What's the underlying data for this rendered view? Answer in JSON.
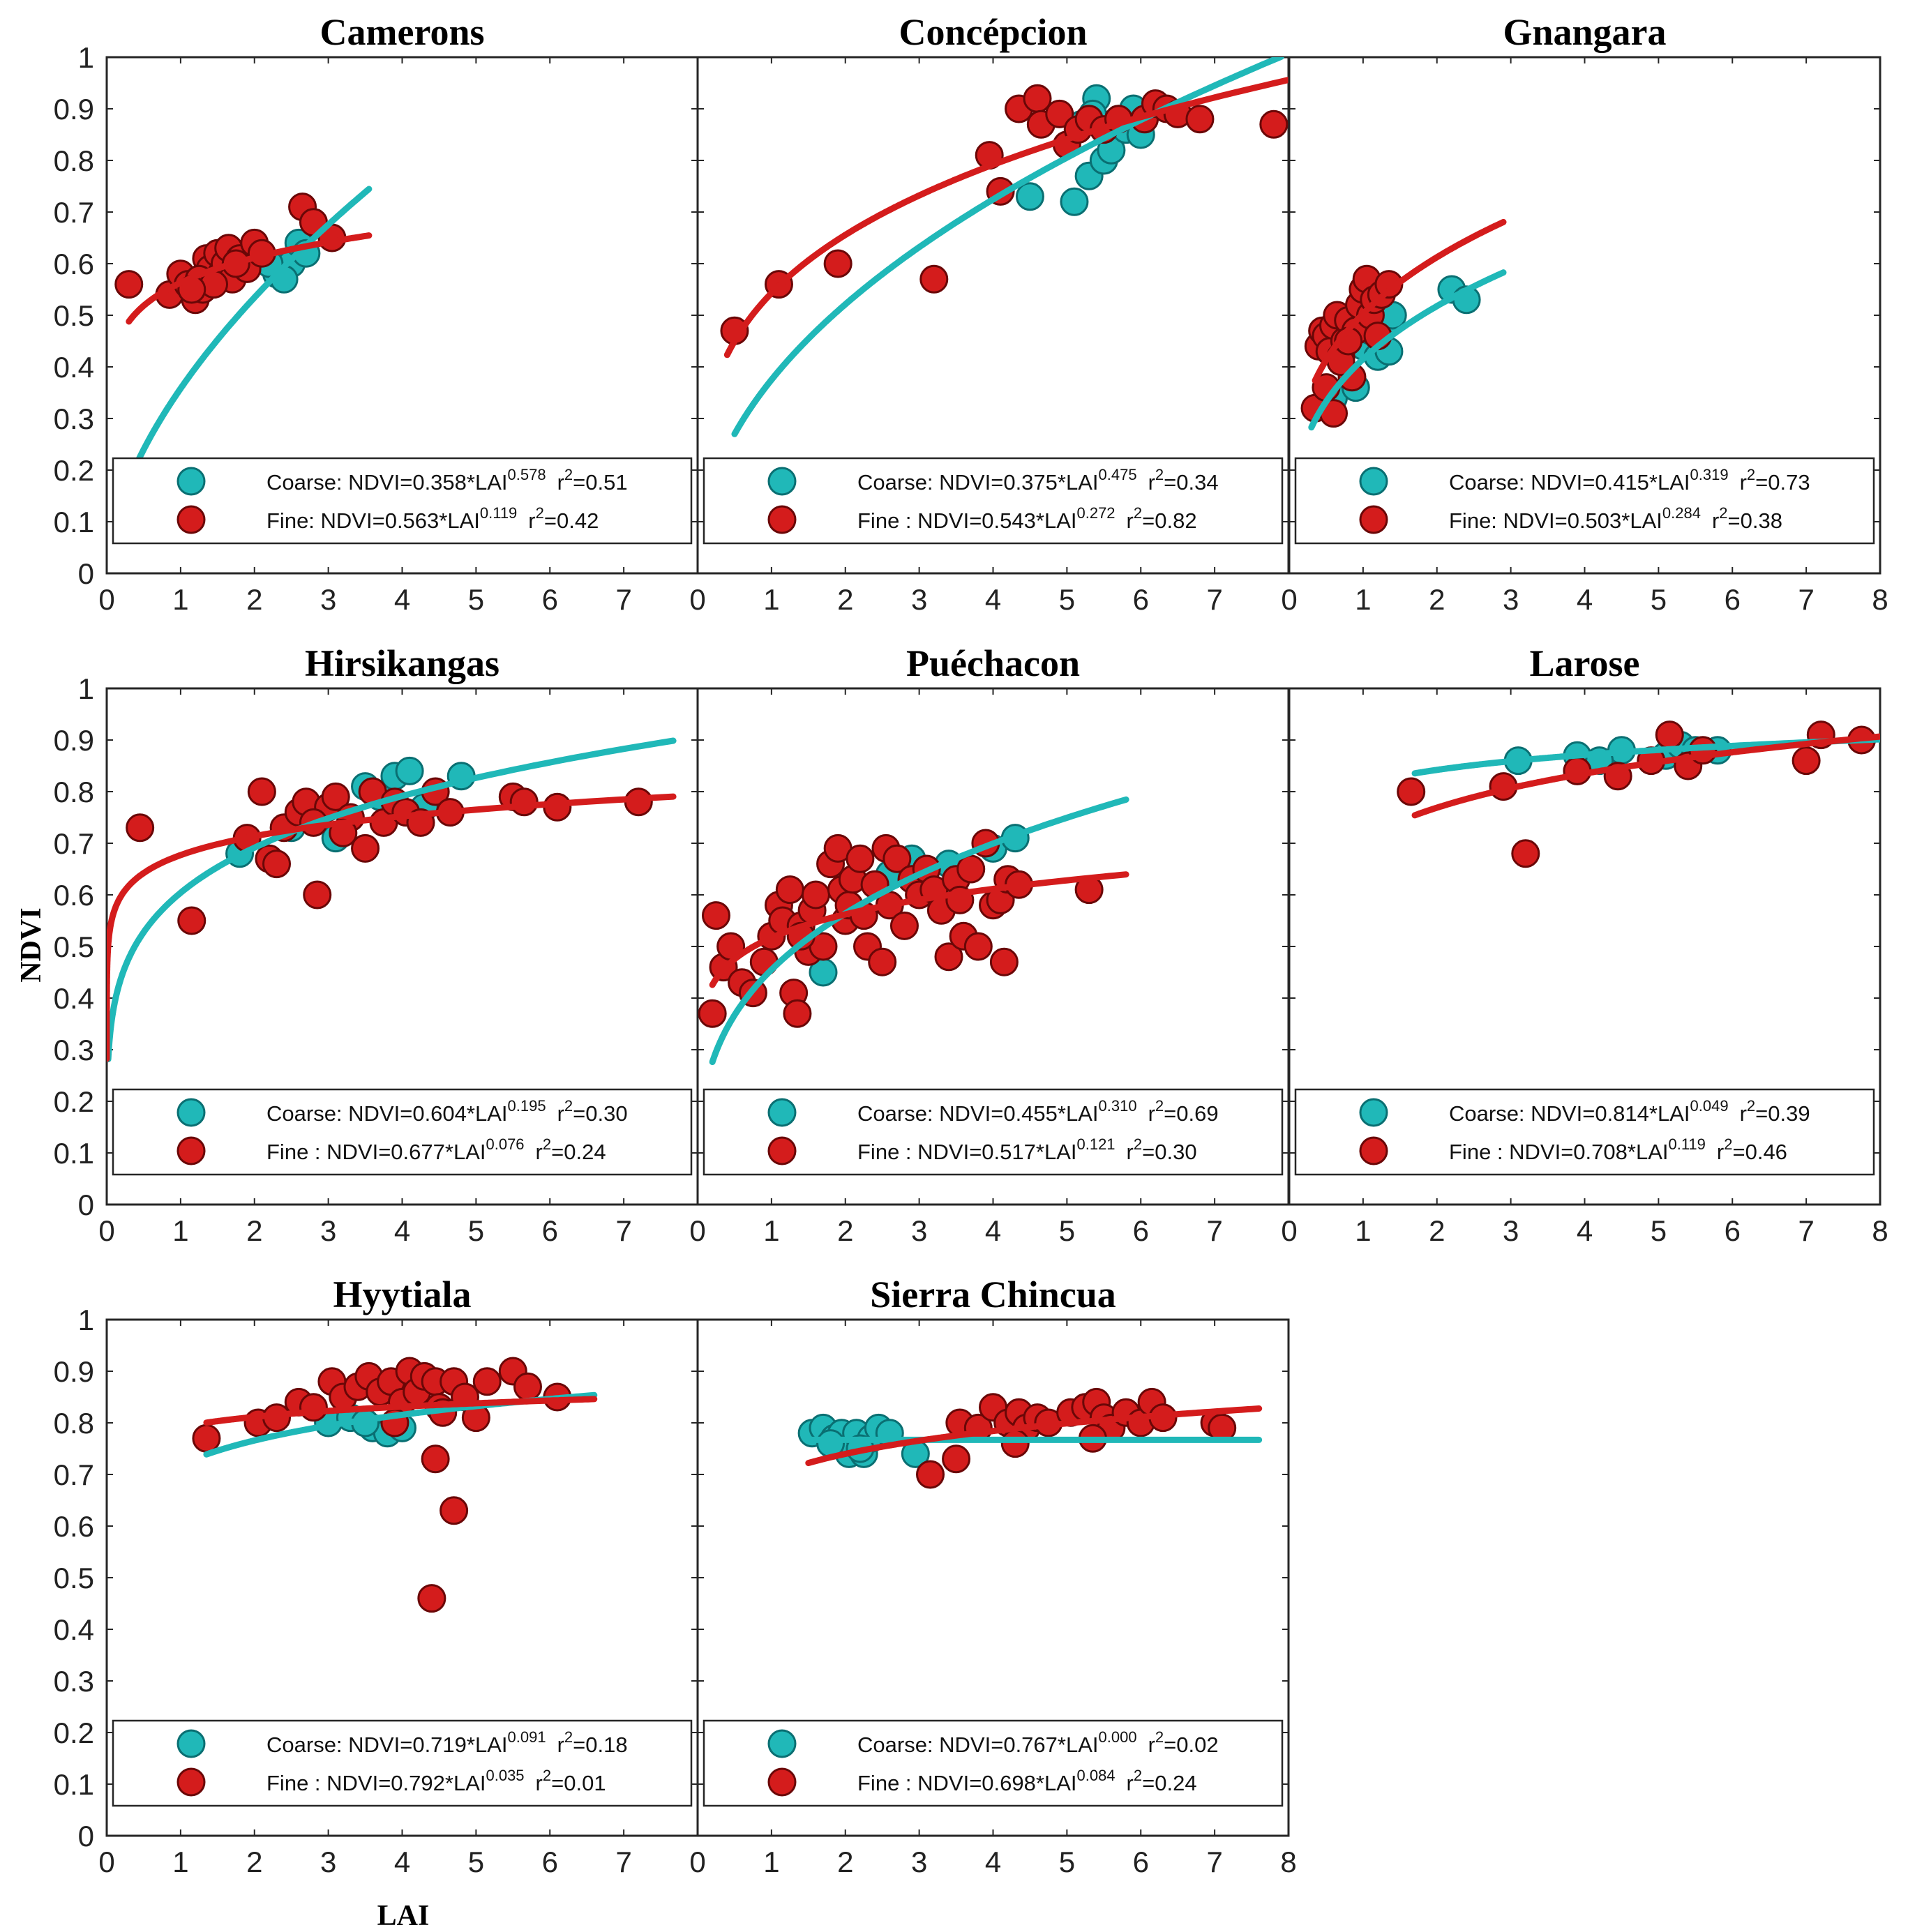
{
  "figure": {
    "ylabel": "NDVI",
    "xlabel": "LAI",
    "colors": {
      "coarse": "#20b8b8",
      "coarse_edge": "#0a6f72",
      "fine": "#d41c1c",
      "fine_edge": "#6a0707"
    }
  },
  "chart_data": [
    {
      "type": "scatter",
      "title": "Camerons",
      "xlim": [
        0,
        8
      ],
      "ylim": [
        0,
        1
      ],
      "x_ticks": [
        "0",
        "1",
        "2",
        "3",
        "4",
        "5",
        "6",
        "7"
      ],
      "y_ticks": [
        "0",
        "0.1",
        "0.2",
        "0.3",
        "0.4",
        "0.5",
        "0.6",
        "0.7",
        "0.8",
        "0.9",
        "1"
      ],
      "legend": {
        "coarse": {
          "label": "Coarse: NDVI=0.358*LAI",
          "exp": "0.578",
          "r2": "=0.51"
        },
        "fine": {
          "label": "Fine: NDVI=0.563*LAI",
          "exp": "0.119",
          "r2": "=0.42"
        }
      },
      "fits": {
        "coarse": {
          "a": 0.358,
          "b": 0.578,
          "xrange": [
            0.4,
            3.55
          ]
        },
        "fine": {
          "a": 0.563,
          "b": 0.119,
          "xrange": [
            0.3,
            3.55
          ]
        }
      },
      "series": [
        {
          "name": "Coarse",
          "x": [
            2.3,
            2.5,
            2.6,
            2.7,
            2.4,
            2.2
          ],
          "y": [
            0.58,
            0.6,
            0.64,
            0.62,
            0.57,
            0.6
          ]
        },
        {
          "name": "Fine",
          "x": [
            0.3,
            0.85,
            1.0,
            1.1,
            1.2,
            1.3,
            1.35,
            1.4,
            1.5,
            1.55,
            1.6,
            1.65,
            1.7,
            1.8,
            1.9,
            2.0,
            2.1,
            1.25,
            1.45,
            1.75,
            2.65,
            2.8,
            3.05,
            1.15
          ],
          "y": [
            0.56,
            0.54,
            0.58,
            0.56,
            0.53,
            0.55,
            0.61,
            0.59,
            0.62,
            0.58,
            0.6,
            0.63,
            0.57,
            0.61,
            0.59,
            0.64,
            0.62,
            0.57,
            0.56,
            0.6,
            0.71,
            0.68,
            0.65,
            0.55
          ]
        }
      ]
    },
    {
      "type": "scatter",
      "title": "Concépcion",
      "xlim": [
        0,
        8
      ],
      "ylim": [
        0,
        1
      ],
      "x_ticks": [
        "0",
        "1",
        "2",
        "3",
        "4",
        "5",
        "6",
        "7"
      ],
      "y_ticks": [],
      "legend": {
        "coarse": {
          "label": "Coarse: NDVI=0.375*LAI",
          "exp": "0.475",
          "r2": "=0.34"
        },
        "fine": {
          "label": "Fine  : NDVI=0.543*LAI",
          "exp": "0.272",
          "r2": "=0.82"
        }
      },
      "fits": {
        "coarse": {
          "a": 0.375,
          "b": 0.475,
          "xrange": [
            0.5,
            7.9
          ]
        },
        "fine": {
          "a": 0.543,
          "b": 0.272,
          "xrange": [
            0.4,
            7.99
          ]
        }
      },
      "series": [
        {
          "name": "Coarse",
          "x": [
            4.5,
            5.1,
            5.3,
            5.4,
            5.5,
            5.6,
            5.7,
            5.8,
            5.9,
            6.0,
            5.2,
            5.35
          ],
          "y": [
            0.73,
            0.72,
            0.77,
            0.92,
            0.8,
            0.82,
            0.88,
            0.86,
            0.9,
            0.85,
            0.87,
            0.89
          ]
        },
        {
          "name": "Fine",
          "x": [
            0.5,
            1.1,
            1.9,
            3.2,
            3.95,
            4.1,
            4.35,
            4.6,
            4.65,
            4.9,
            5.0,
            5.15,
            5.3,
            5.5,
            5.7,
            6.05,
            6.2,
            6.35,
            6.5,
            6.8,
            7.8
          ],
          "y": [
            0.47,
            0.56,
            0.6,
            0.57,
            0.81,
            0.74,
            0.9,
            0.92,
            0.87,
            0.89,
            0.83,
            0.86,
            0.88,
            0.86,
            0.88,
            0.88,
            0.91,
            0.9,
            0.89,
            0.88,
            0.87
          ]
        }
      ]
    },
    {
      "type": "scatter",
      "title": "Gnangara",
      "xlim": [
        0,
        8
      ],
      "ylim": [
        0,
        1
      ],
      "x_ticks": [
        "0",
        "1",
        "2",
        "3",
        "4",
        "5",
        "6",
        "7",
        "8"
      ],
      "y_ticks": [],
      "legend": {
        "coarse": {
          "label": "Coarse: NDVI=0.415*LAI",
          "exp": "0.319",
          "r2": "=0.73"
        },
        "fine": {
          "label": "Fine: NDVI=0.503*LAI",
          "exp": "0.284",
          "r2": "=0.38"
        }
      },
      "fits": {
        "coarse": {
          "a": 0.415,
          "b": 0.319,
          "xrange": [
            0.3,
            2.9
          ]
        },
        "fine": {
          "a": 0.503,
          "b": 0.284,
          "xrange": [
            0.35,
            2.9
          ]
        }
      },
      "series": [
        {
          "name": "Coarse",
          "x": [
            0.6,
            0.9,
            1.0,
            1.2,
            1.3,
            1.4,
            1.1,
            2.2,
            2.4,
            1.35
          ],
          "y": [
            0.34,
            0.36,
            0.44,
            0.42,
            0.48,
            0.5,
            0.47,
            0.55,
            0.53,
            0.43
          ]
        },
        {
          "name": "Fine",
          "x": [
            0.35,
            0.4,
            0.45,
            0.5,
            0.55,
            0.6,
            0.65,
            0.7,
            0.75,
            0.8,
            0.85,
            0.9,
            0.95,
            1.0,
            1.05,
            1.1,
            1.15,
            1.2,
            1.25,
            1.35,
            0.5,
            0.6,
            0.7,
            0.8
          ],
          "y": [
            0.32,
            0.44,
            0.47,
            0.46,
            0.43,
            0.48,
            0.5,
            0.42,
            0.45,
            0.49,
            0.38,
            0.47,
            0.52,
            0.55,
            0.57,
            0.5,
            0.53,
            0.46,
            0.54,
            0.56,
            0.36,
            0.31,
            0.41,
            0.45
          ]
        }
      ]
    },
    {
      "type": "scatter",
      "title": "Hirsikangas",
      "xlim": [
        0,
        8
      ],
      "ylim": [
        0,
        1
      ],
      "x_ticks": [
        "0",
        "1",
        "2",
        "3",
        "4",
        "5",
        "6",
        "7"
      ],
      "y_ticks": [
        "0",
        "0.1",
        "0.2",
        "0.3",
        "0.4",
        "0.5",
        "0.6",
        "0.7",
        "0.8",
        "0.9",
        "1"
      ],
      "legend": {
        "coarse": {
          "label": "Coarse: NDVI=0.604*LAI",
          "exp": "0.195",
          "r2": "=0.30"
        },
        "fine": {
          "label": "Fine  : NDVI=0.677*LAI",
          "exp": "0.076",
          "r2": "=0.24"
        }
      },
      "fits": {
        "coarse": {
          "a": 0.604,
          "b": 0.195,
          "xrange": [
            0.02,
            7.67
          ]
        },
        "fine": {
          "a": 0.677,
          "b": 0.076,
          "xrange": [
            1e-05,
            7.67
          ]
        }
      },
      "series": [
        {
          "name": "Coarse",
          "x": [
            1.8,
            2.5,
            3.1,
            3.5,
            3.7,
            3.9,
            4.1,
            4.8,
            4.3,
            2.9
          ],
          "y": [
            0.68,
            0.73,
            0.71,
            0.81,
            0.79,
            0.83,
            0.84,
            0.83,
            0.77,
            0.76
          ]
        },
        {
          "name": "Fine",
          "x": [
            0.45,
            1.15,
            1.9,
            2.1,
            2.2,
            2.3,
            2.4,
            2.6,
            2.7,
            2.85,
            3.0,
            3.1,
            3.3,
            3.5,
            3.6,
            3.75,
            3.9,
            4.05,
            4.25,
            4.45,
            4.65,
            5.5,
            5.65,
            6.1,
            7.2,
            2.8,
            3.2
          ],
          "y": [
            0.73,
            0.55,
            0.71,
            0.8,
            0.67,
            0.66,
            0.73,
            0.76,
            0.78,
            0.6,
            0.77,
            0.79,
            0.75,
            0.69,
            0.8,
            0.74,
            0.78,
            0.76,
            0.74,
            0.8,
            0.76,
            0.79,
            0.78,
            0.77,
            0.78,
            0.74,
            0.72
          ]
        }
      ]
    },
    {
      "type": "scatter",
      "title": "Puéchacon",
      "xlim": [
        0,
        8
      ],
      "ylim": [
        0,
        1
      ],
      "x_ticks": [
        "0",
        "1",
        "2",
        "3",
        "4",
        "5",
        "6",
        "7"
      ],
      "y_ticks": [],
      "legend": {
        "coarse": {
          "label": "Coarse: NDVI=0.455*LAI",
          "exp": "0.310",
          "r2": "=0.69"
        },
        "fine": {
          "label": "Fine  : NDVI=0.517*LAI",
          "exp": "0.121",
          "r2": "=0.30"
        }
      },
      "fits": {
        "coarse": {
          "a": 0.455,
          "b": 0.31,
          "xrange": [
            0.2,
            5.8
          ]
        },
        "fine": {
          "a": 0.517,
          "b": 0.121,
          "xrange": [
            0.2,
            5.8
          ]
        }
      },
      "series": [
        {
          "name": "Coarse",
          "x": [
            1.7,
            2.9,
            3.4,
            4.0,
            4.3,
            3.1,
            2.6
          ],
          "y": [
            0.45,
            0.67,
            0.66,
            0.69,
            0.71,
            0.62,
            0.64
          ]
        },
        {
          "name": "Fine",
          "x": [
            0.2,
            0.25,
            0.35,
            0.45,
            0.6,
            0.75,
            0.9,
            1.0,
            1.1,
            1.15,
            1.25,
            1.3,
            1.35,
            1.4,
            1.5,
            1.55,
            1.6,
            1.7,
            1.8,
            1.9,
            1.95,
            2.0,
            2.05,
            2.1,
            2.2,
            2.3,
            2.4,
            2.5,
            2.55,
            2.6,
            2.7,
            2.8,
            2.9,
            3.0,
            3.1,
            3.2,
            3.3,
            3.4,
            3.5,
            3.6,
            3.7,
            3.8,
            3.9,
            4.0,
            4.1,
            4.15,
            4.2,
            4.35,
            5.3,
            1.4,
            2.25,
            3.55
          ],
          "y": [
            0.37,
            0.56,
            0.46,
            0.5,
            0.43,
            0.41,
            0.47,
            0.52,
            0.58,
            0.55,
            0.61,
            0.41,
            0.37,
            0.54,
            0.49,
            0.57,
            0.6,
            0.5,
            0.66,
            0.69,
            0.61,
            0.55,
            0.58,
            0.63,
            0.67,
            0.5,
            0.62,
            0.47,
            0.69,
            0.58,
            0.67,
            0.54,
            0.63,
            0.6,
            0.65,
            0.61,
            0.57,
            0.48,
            0.63,
            0.52,
            0.65,
            0.5,
            0.7,
            0.58,
            0.59,
            0.47,
            0.63,
            0.62,
            0.61,
            0.52,
            0.56,
            0.59
          ]
        }
      ]
    },
    {
      "type": "scatter",
      "title": "Larose",
      "xlim": [
        0,
        8
      ],
      "ylim": [
        0,
        1
      ],
      "x_ticks": [
        "0",
        "1",
        "2",
        "3",
        "4",
        "5",
        "6",
        "7",
        "8"
      ],
      "y_ticks": [],
      "legend": {
        "coarse": {
          "label": "Coarse: NDVI=0.814*LAI",
          "exp": "0.049",
          "r2": "=0.39"
        },
        "fine": {
          "label": "Fine  : NDVI=0.708*LAI",
          "exp": "0.119",
          "r2": "=0.46"
        }
      },
      "fits": {
        "coarse": {
          "a": 0.814,
          "b": 0.049,
          "xrange": [
            1.7,
            7.99
          ]
        },
        "fine": {
          "a": 0.708,
          "b": 0.119,
          "xrange": [
            1.7,
            7.99
          ]
        }
      },
      "series": [
        {
          "name": "Coarse",
          "x": [
            3.1,
            3.9,
            4.5,
            5.1,
            5.3,
            5.5,
            5.8,
            4.2
          ],
          "y": [
            0.86,
            0.87,
            0.88,
            0.87,
            0.89,
            0.88,
            0.88,
            0.86
          ]
        },
        {
          "name": "Fine",
          "x": [
            1.65,
            2.9,
            3.2,
            3.9,
            4.45,
            4.9,
            5.15,
            5.4,
            5.6,
            7.0,
            7.2,
            7.75
          ],
          "y": [
            0.8,
            0.81,
            0.68,
            0.84,
            0.83,
            0.86,
            0.91,
            0.85,
            0.88,
            0.86,
            0.91,
            0.9
          ]
        }
      ]
    },
    {
      "type": "scatter",
      "title": "Hyytiala",
      "xlim": [
        0,
        8
      ],
      "ylim": [
        0,
        1
      ],
      "x_ticks": [
        "0",
        "1",
        "2",
        "3",
        "4",
        "5",
        "6",
        "7"
      ],
      "y_ticks": [
        "0",
        "0.1",
        "0.2",
        "0.3",
        "0.4",
        "0.5",
        "0.6",
        "0.7",
        "0.8",
        "0.9",
        "1"
      ],
      "legend": {
        "coarse": {
          "label": "Coarse: NDVI=0.719*LAI",
          "exp": "0.091",
          "r2": "=0.18"
        },
        "fine": {
          "label": "Fine  : NDVI=0.792*LAI",
          "exp": "0.035",
          "r2": "=0.01"
        }
      },
      "fits": {
        "coarse": {
          "a": 0.719,
          "b": 0.091,
          "xrange": [
            1.35,
            6.6
          ]
        },
        "fine": {
          "a": 0.792,
          "b": 0.035,
          "xrange": [
            1.35,
            6.6
          ]
        }
      },
      "series": [
        {
          "name": "Coarse",
          "x": [
            3.0,
            3.3,
            3.6,
            3.8,
            4.0,
            3.5
          ],
          "y": [
            0.8,
            0.81,
            0.79,
            0.78,
            0.79,
            0.8
          ]
        },
        {
          "name": "Fine",
          "x": [
            1.35,
            2.05,
            2.3,
            2.6,
            2.8,
            3.05,
            3.2,
            3.4,
            3.55,
            3.7,
            3.85,
            4.0,
            4.1,
            4.2,
            4.3,
            4.45,
            4.5,
            4.55,
            4.7,
            4.85,
            5.0,
            5.15,
            5.5,
            5.7,
            6.1,
            4.45,
            4.7,
            4.4,
            3.9
          ],
          "y": [
            0.77,
            0.8,
            0.81,
            0.84,
            0.83,
            0.88,
            0.85,
            0.87,
            0.89,
            0.86,
            0.88,
            0.84,
            0.9,
            0.86,
            0.89,
            0.88,
            0.83,
            0.82,
            0.88,
            0.85,
            0.81,
            0.88,
            0.9,
            0.87,
            0.85,
            0.73,
            0.63,
            0.46,
            0.8
          ]
        }
      ]
    },
    {
      "type": "scatter",
      "title": "Sierra Chincua",
      "xlim": [
        0,
        8
      ],
      "ylim": [
        0,
        1
      ],
      "x_ticks": [
        "0",
        "1",
        "2",
        "3",
        "4",
        "5",
        "6",
        "7",
        "8"
      ],
      "y_ticks": [],
      "legend": {
        "coarse": {
          "label": "Coarse: NDVI=0.767*LAI",
          "exp": "0.000",
          "r2": "=0.02"
        },
        "fine": {
          "label": "Fine  : NDVI=0.698*LAI",
          "exp": "0.084",
          "r2": "=0.24"
        }
      },
      "fits": {
        "coarse": {
          "a": 0.767,
          "b": 0.0,
          "xrange": [
            1.5,
            7.6
          ]
        },
        "fine": {
          "a": 0.698,
          "b": 0.084,
          "xrange": [
            1.5,
            7.6
          ]
        }
      },
      "series": [
        {
          "name": "Coarse",
          "x": [
            1.55,
            1.7,
            1.85,
            1.95,
            2.05,
            2.15,
            2.25,
            2.35,
            2.45,
            2.6,
            2.95,
            1.8,
            2.2
          ],
          "y": [
            0.78,
            0.79,
            0.77,
            0.78,
            0.74,
            0.78,
            0.74,
            0.77,
            0.79,
            0.78,
            0.74,
            0.76,
            0.75
          ]
        },
        {
          "name": "Fine",
          "x": [
            3.15,
            3.5,
            3.55,
            3.8,
            4.0,
            4.2,
            4.35,
            4.45,
            4.6,
            4.75,
            5.05,
            5.25,
            5.4,
            5.5,
            5.6,
            5.8,
            6.0,
            6.15,
            6.3,
            7.0,
            7.1,
            4.3,
            5.35
          ],
          "y": [
            0.7,
            0.73,
            0.8,
            0.79,
            0.83,
            0.8,
            0.82,
            0.79,
            0.81,
            0.8,
            0.82,
            0.83,
            0.84,
            0.81,
            0.79,
            0.82,
            0.8,
            0.84,
            0.81,
            0.8,
            0.79,
            0.76,
            0.77
          ]
        }
      ]
    }
  ]
}
